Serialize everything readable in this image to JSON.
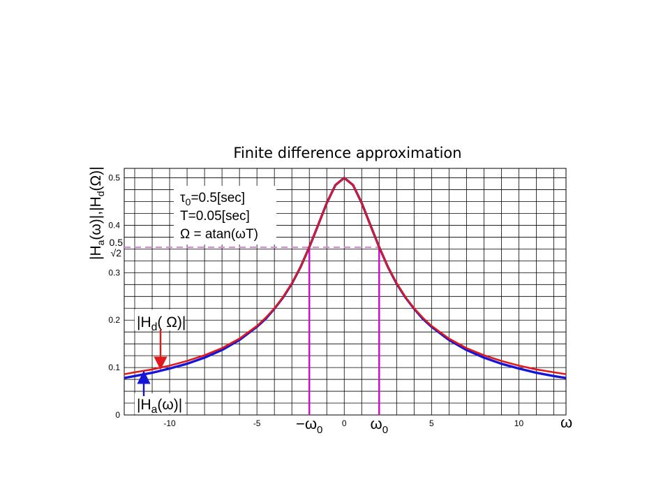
{
  "slide": {
    "title": "Finite difference approximation"
  },
  "chart_data": {
    "type": "line",
    "title": "Finite difference approximation",
    "xlabel": "ω",
    "ylabel": "|Ha(ω)|,|Hd(Ω)|",
    "xlim": [
      -12.6,
      12.7
    ],
    "ylim": [
      0,
      0.52
    ],
    "x_ticks": [
      {
        "value": -10,
        "label": "-10"
      },
      {
        "value": -5,
        "label": "-5"
      },
      {
        "value": -2,
        "label": "−ω0"
      },
      {
        "value": 0,
        "label": "0"
      },
      {
        "value": 2,
        "label": "ω0"
      },
      {
        "value": 5,
        "label": "5"
      },
      {
        "value": 10,
        "label": "10"
      }
    ],
    "y_ticks": [
      {
        "value": 0,
        "label": "0"
      },
      {
        "value": 0.1,
        "label": "0.1"
      },
      {
        "value": 0.2,
        "label": "0.2"
      },
      {
        "value": 0.3,
        "label": "0.3"
      },
      {
        "value": 0.4,
        "label": "0.4"
      },
      {
        "value": 0.5,
        "label": "0.5"
      }
    ],
    "special_y_tick": {
      "value": 0.3536,
      "numerator": "0.5",
      "denominator": "√2"
    },
    "grid": true,
    "omega0": 2,
    "params": [
      "τ0=0.5[sec]",
      "T=0.05[sec]",
      "Ω = atan(ωT)"
    ],
    "series": [
      {
        "name": "|Ha(ω)|",
        "color": "#1515d8",
        "x": [
          -12.6,
          -12,
          -11,
          -10,
          -9,
          -8,
          -7,
          -6,
          -5,
          -4.5,
          -4,
          -3.5,
          -3,
          -2.5,
          -2,
          -1.5,
          -1,
          -0.5,
          0,
          0.5,
          1,
          1.5,
          2,
          2.5,
          3,
          3.5,
          4,
          4.5,
          5,
          6,
          7,
          8,
          9,
          10,
          11,
          12,
          12.7
        ],
        "values": [
          0.078,
          0.082,
          0.089,
          0.098,
          0.108,
          0.121,
          0.137,
          0.158,
          0.186,
          0.203,
          0.224,
          0.248,
          0.277,
          0.312,
          0.354,
          0.4,
          0.447,
          0.485,
          0.5,
          0.485,
          0.447,
          0.4,
          0.354,
          0.312,
          0.277,
          0.248,
          0.224,
          0.203,
          0.186,
          0.158,
          0.137,
          0.121,
          0.108,
          0.098,
          0.089,
          0.082,
          0.078
        ]
      },
      {
        "name": "|Hd(Ω)|",
        "color": "#e01a1a",
        "x": [
          -12.6,
          -12,
          -11,
          -10,
          -9,
          -8,
          -7,
          -6,
          -5,
          -4.5,
          -4,
          -3.5,
          -3,
          -2.5,
          -2,
          -1.5,
          -1,
          -0.5,
          0,
          0.5,
          1,
          1.5,
          2,
          2.5,
          3,
          3.5,
          4,
          4.5,
          5,
          6,
          7,
          8,
          9,
          10,
          11,
          12,
          12.7
        ],
        "values": [
          0.086,
          0.09,
          0.096,
          0.104,
          0.114,
          0.126,
          0.141,
          0.161,
          0.188,
          0.205,
          0.225,
          0.249,
          0.278,
          0.312,
          0.354,
          0.4,
          0.447,
          0.485,
          0.5,
          0.485,
          0.447,
          0.4,
          0.354,
          0.312,
          0.278,
          0.249,
          0.225,
          0.205,
          0.188,
          0.161,
          0.141,
          0.126,
          0.114,
          0.104,
          0.096,
          0.09,
          0.086
        ]
      }
    ],
    "annotations": [
      {
        "label": "|Hd(Ω)|",
        "color": "#e01a1a",
        "points_to_x": -10.5
      },
      {
        "label": "|Ha(ω)|",
        "color": "#1515d8",
        "points_to_x": -11.5
      }
    ],
    "markers": {
      "half_power_color": "#d38ad3",
      "omega0_color": "#cc10cc"
    }
  }
}
